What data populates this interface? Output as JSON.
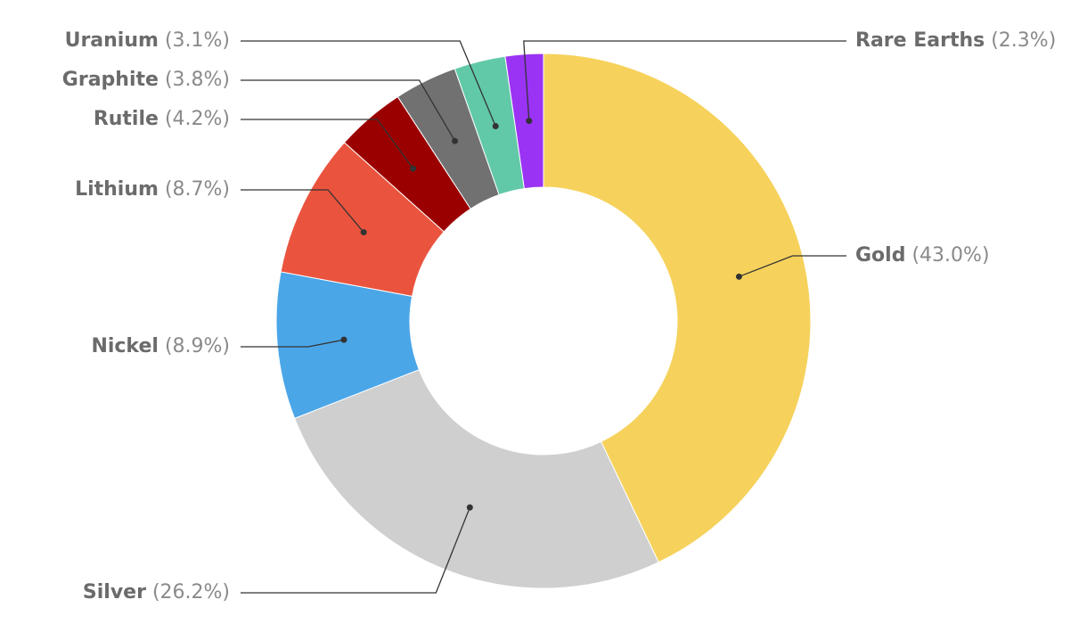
{
  "chart_data": {
    "type": "pie",
    "categories": [
      "Gold",
      "Silver",
      "Nickel",
      "Lithium",
      "Rutile",
      "Graphite",
      "Uranium",
      "Rare Earths"
    ],
    "values": [
      43.0,
      26.2,
      8.9,
      8.7,
      4.2,
      3.8,
      3.1,
      2.3
    ],
    "value_labels": [
      "(43.0%)",
      "(26.2%)",
      "(8.9%)",
      "(8.7%)",
      "(4.2%)",
      "(3.8%)",
      "(3.1%)",
      "(2.3%)"
    ],
    "colors": [
      "#f6d25c",
      "#cfcfcf",
      "#4ba6e8",
      "#ea543e",
      "#9b0000",
      "#717171",
      "#62c9a8",
      "#9b33f5"
    ]
  }
}
